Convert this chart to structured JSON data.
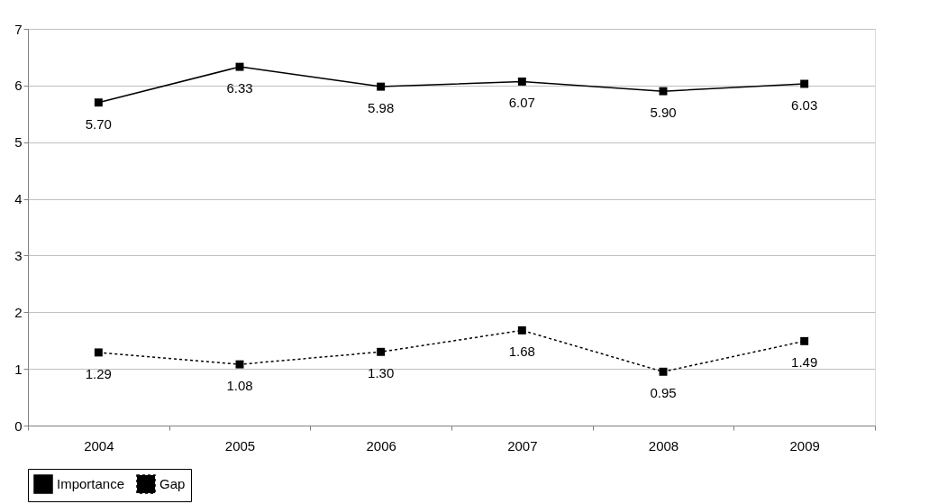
{
  "chart_data": {
    "type": "line",
    "categories": [
      "2004",
      "2005",
      "2006",
      "2007",
      "2008",
      "2009"
    ],
    "series": [
      {
        "name": "Importance",
        "color": "#000000",
        "line_style": "solid",
        "marker": "square",
        "values": [
          5.7,
          6.33,
          5.98,
          6.07,
          5.9,
          6.03
        ],
        "value_labels": [
          "5.70",
          "6.33",
          "5.98",
          "6.07",
          "5.90",
          "6.03"
        ]
      },
      {
        "name": "Gap",
        "color": "#000000",
        "line_style": "dotted",
        "marker": "square",
        "values": [
          1.29,
          1.08,
          1.3,
          1.68,
          0.95,
          1.49
        ],
        "value_labels": [
          "1.29",
          "1.08",
          "1.30",
          "1.68",
          "0.95",
          "1.49"
        ]
      }
    ],
    "ylim": [
      0,
      7
    ],
    "yticks": [
      0,
      1,
      2,
      3,
      4,
      5,
      6,
      7
    ],
    "grid": "y",
    "legend": "bottom"
  }
}
